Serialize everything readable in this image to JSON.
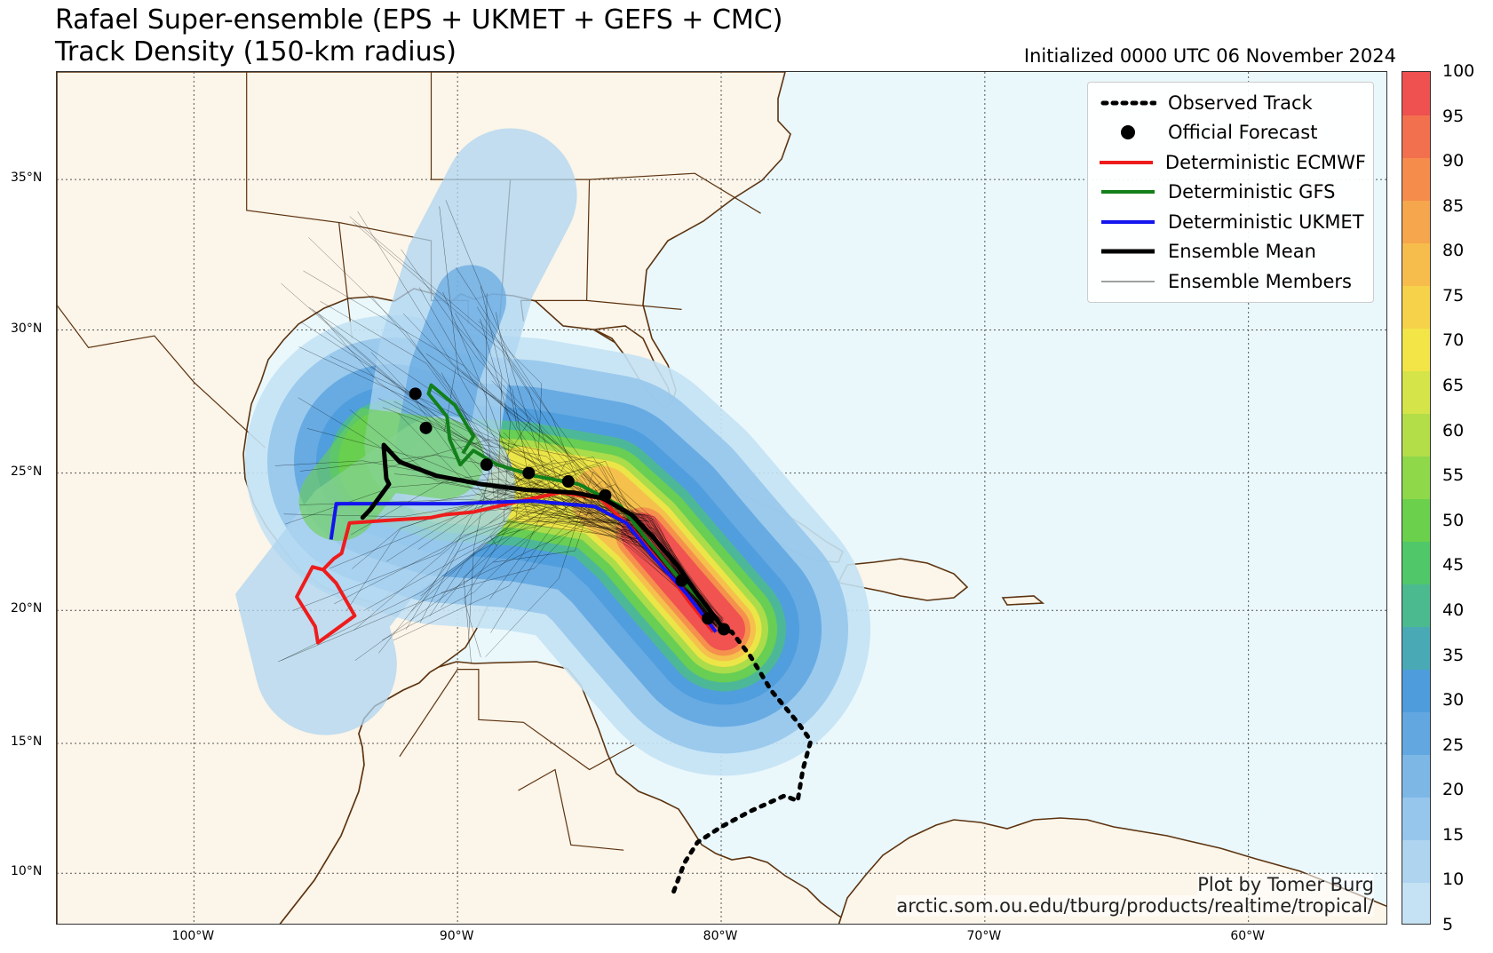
{
  "title_line1": "Rafael Super-ensemble (EPS + UKMET + GEFS + CMC)",
  "title_line2": "Track Density (150-km radius)",
  "initialized": "Initialized 0000 UTC 06 November 2024",
  "credit_line1": "Plot by Tomer Burg",
  "credit_line2": "arctic.som.ou.edu/tburg/products/realtime/tropical/",
  "lat_labels": [
    "35°N",
    "30°N",
    "25°N",
    "20°N",
    "15°N",
    "10°N"
  ],
  "lon_labels": [
    "100°W",
    "90°W",
    "80°W",
    "70°W",
    "60°W"
  ],
  "legend": [
    {
      "label": "Observed Track",
      "symbol": "dotted"
    },
    {
      "label": "Official Forecast",
      "symbol": "dot"
    },
    {
      "label": "Deterministic ECMWF",
      "symbol": "line",
      "color": "#ee1c1c"
    },
    {
      "label": "Deterministic GFS",
      "symbol": "line",
      "color": "#12801a"
    },
    {
      "label": "Deterministic UKMET",
      "symbol": "line",
      "color": "#1414ee"
    },
    {
      "label": "Ensemble Mean",
      "symbol": "thickline",
      "color": "#000000"
    },
    {
      "label": "Ensemble Members",
      "symbol": "thinline",
      "color": "#000000"
    }
  ],
  "colorbar": {
    "min": 5,
    "max": 100,
    "step": 5,
    "tick_labels": [
      "100",
      "95",
      "90",
      "85",
      "80",
      "75",
      "70",
      "65",
      "60",
      "55",
      "50",
      "45",
      "40",
      "35",
      "30",
      "25",
      "20",
      "15",
      "10",
      "5"
    ],
    "colors": [
      "#c4e2f4",
      "#aed4f0",
      "#96c6ec",
      "#7db7e6",
      "#63a7e1",
      "#4e9cdb",
      "#49a9b5",
      "#4cba8f",
      "#50c86a",
      "#6bd04c",
      "#8fd84a",
      "#b3de48",
      "#d5e448",
      "#f3e548",
      "#f6d24a",
      "#f6bd4c",
      "#f6a64c",
      "#f58c4c",
      "#f3704e",
      "#ef5050"
    ]
  },
  "colors": {
    "ocean": "#eaf8fc",
    "land": "#fcf5e9",
    "coast": "#5c3310",
    "ecmwf": "#ee1c1c",
    "gfs": "#12801a",
    "ukmet": "#1414ee"
  },
  "official_forecast_points": [
    [
      -79.9,
      19.3
    ],
    [
      -80.5,
      19.7
    ],
    [
      -81.5,
      21.1
    ],
    [
      -84.4,
      24.2
    ],
    [
      -85.8,
      24.7
    ],
    [
      -87.3,
      25.0
    ],
    [
      -88.9,
      25.3
    ],
    [
      -91.2,
      26.6
    ],
    [
      -91.6,
      27.8
    ]
  ],
  "observed_track": [
    [
      -81.8,
      9.3
    ],
    [
      -81.4,
      10.4
    ],
    [
      -80.9,
      11.2
    ],
    [
      -80.0,
      11.8
    ],
    [
      -78.9,
      12.4
    ],
    [
      -77.6,
      13.0
    ],
    [
      -77.1,
      12.8
    ],
    [
      -76.9,
      14.0
    ],
    [
      -76.6,
      15.1
    ],
    [
      -77.1,
      15.8
    ],
    [
      -78.1,
      17.0
    ],
    [
      -78.9,
      18.3
    ],
    [
      -79.6,
      19.2
    ],
    [
      -79.9,
      19.3
    ]
  ],
  "ecmwf_track": [
    [
      -80.3,
      19.2
    ],
    [
      -81.2,
      20.3
    ],
    [
      -82.2,
      21.6
    ],
    [
      -83.4,
      23.0
    ],
    [
      -84.6,
      24.1
    ],
    [
      -86.1,
      24.3
    ],
    [
      -87.6,
      24.0
    ],
    [
      -89.4,
      23.6
    ],
    [
      -90.5,
      23.5
    ],
    [
      -91.0,
      23.4
    ],
    [
      -92.6,
      23.3
    ],
    [
      -94.1,
      23.2
    ],
    [
      -94.4,
      22.1
    ],
    [
      -94.7,
      21.9
    ],
    [
      -95.1,
      21.5
    ],
    [
      -95.5,
      21.6
    ],
    [
      -96.1,
      20.5
    ],
    [
      -95.4,
      19.4
    ],
    [
      -95.3,
      18.8
    ],
    [
      -93.9,
      19.8
    ],
    [
      -94.6,
      21.0
    ],
    [
      -95.1,
      21.5
    ]
  ],
  "gfs_track": [
    [
      -80.0,
      19.4
    ],
    [
      -80.8,
      20.4
    ],
    [
      -81.7,
      21.3
    ],
    [
      -82.9,
      22.7
    ],
    [
      -83.8,
      23.8
    ],
    [
      -85.4,
      24.6
    ],
    [
      -87.1,
      24.9
    ],
    [
      -88.5,
      25.3
    ],
    [
      -89.4,
      25.8
    ],
    [
      -89.9,
      25.3
    ],
    [
      -90.3,
      26.2
    ],
    [
      -90.4,
      27.0
    ],
    [
      -91.1,
      27.8
    ],
    [
      -91.0,
      28.1
    ],
    [
      -90.1,
      27.4
    ],
    [
      -89.4,
      26.3
    ],
    [
      -89.8,
      25.7
    ]
  ],
  "ukmet_track": [
    [
      -80.2,
      19.2
    ],
    [
      -81.3,
      20.6
    ],
    [
      -82.6,
      22.0
    ],
    [
      -83.6,
      23.2
    ],
    [
      -84.8,
      23.8
    ],
    [
      -87.2,
      24.0
    ],
    [
      -90.1,
      23.9
    ],
    [
      -92.5,
      23.9
    ],
    [
      -94.6,
      23.9
    ],
    [
      -94.8,
      22.6
    ]
  ],
  "ensemble_mean_track": [
    [
      -79.9,
      19.3
    ],
    [
      -80.9,
      20.6
    ],
    [
      -81.7,
      21.7
    ],
    [
      -82.6,
      22.7
    ],
    [
      -83.4,
      23.5
    ],
    [
      -84.5,
      24.1
    ],
    [
      -85.6,
      24.3
    ],
    [
      -87.4,
      24.4
    ],
    [
      -89.1,
      24.6
    ],
    [
      -90.8,
      24.9
    ],
    [
      -92.2,
      25.4
    ],
    [
      -92.8,
      26.0
    ],
    [
      -92.8,
      25.9
    ],
    [
      -92.7,
      24.8
    ],
    [
      -92.6,
      24.6
    ],
    [
      -93.3,
      23.7
    ],
    [
      -93.6,
      23.4
    ]
  ]
}
